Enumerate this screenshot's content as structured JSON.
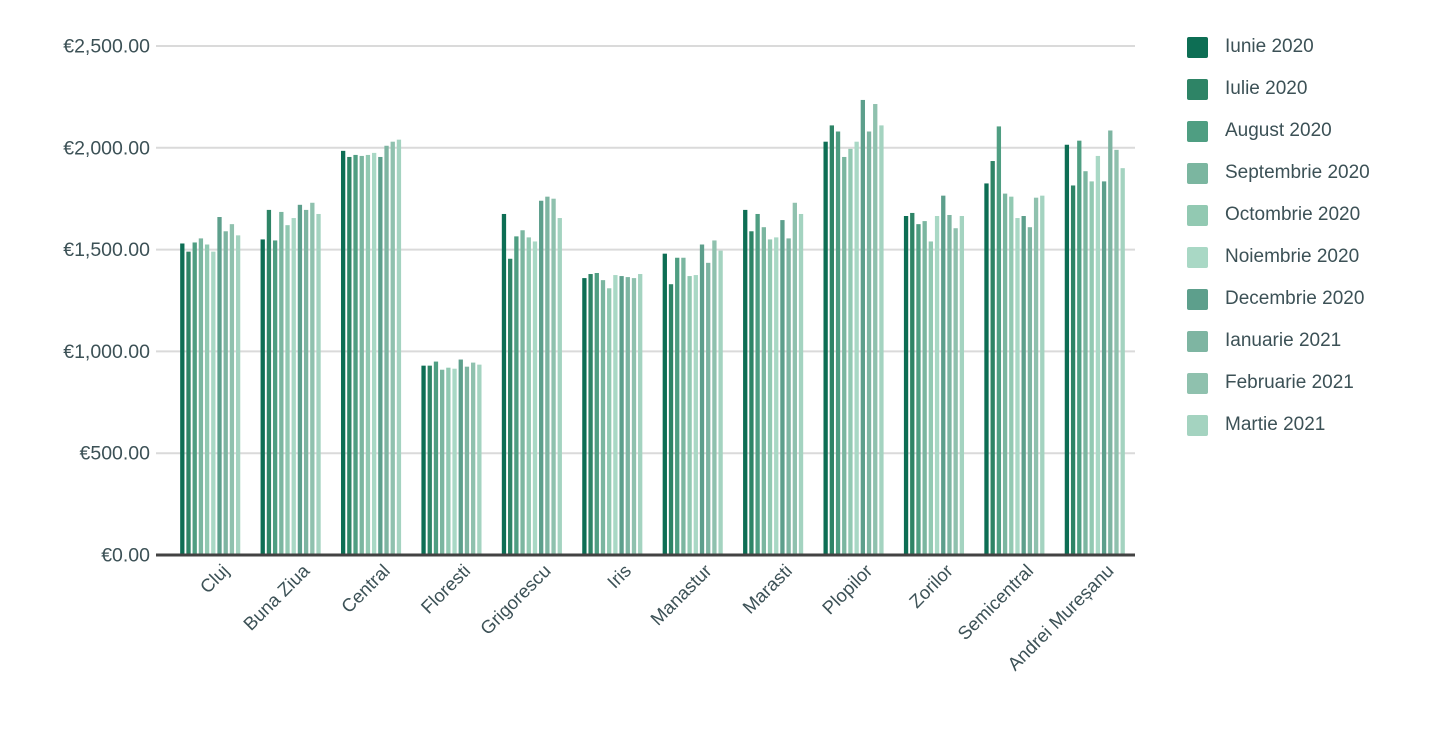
{
  "chart_data": {
    "type": "bar",
    "title": "",
    "xlabel": "",
    "ylabel": "",
    "legend_position": "right",
    "grid": true,
    "categories": [
      "Cluj",
      "Buna Ziua",
      "Central",
      "Floresti",
      "Grigorescu",
      "Iris",
      "Manastur",
      "Marasti",
      "Plopilor",
      "Zorilor",
      "Semicentral",
      "Andrei Mureșanu"
    ],
    "series": [
      {
        "name": "Iunie 2020",
        "color": "#0d6e54",
        "values": [
          1530,
          1550,
          1985,
          930,
          1675,
          1360,
          1480,
          1695,
          2030,
          1665,
          1825,
          2015
        ]
      },
      {
        "name": "Iulie 2020",
        "color": "#2e8466",
        "values": [
          1490,
          1695,
          1955,
          930,
          1455,
          1380,
          1330,
          1590,
          2110,
          1680,
          1935,
          1815
        ]
      },
      {
        "name": "August 2020",
        "color": "#4f9e82",
        "values": [
          1535,
          1545,
          1965,
          950,
          1565,
          1385,
          1460,
          1675,
          2080,
          1625,
          2105,
          2035
        ]
      },
      {
        "name": "Septembrie 2020",
        "color": "#7bb6a0",
        "values": [
          1555,
          1685,
          1960,
          910,
          1595,
          1350,
          1460,
          1610,
          1955,
          1640,
          1775,
          1885
        ]
      },
      {
        "name": "Octombrie 2020",
        "color": "#92c9b2",
        "values": [
          1525,
          1620,
          1965,
          920,
          1560,
          1310,
          1370,
          1550,
          1995,
          1540,
          1760,
          1835
        ]
      },
      {
        "name": "Noiembrie 2020",
        "color": "#a9d8c5",
        "values": [
          1490,
          1655,
          1975,
          915,
          1540,
          1375,
          1375,
          1560,
          2030,
          1665,
          1655,
          1960
        ]
      },
      {
        "name": "Decembrie 2020",
        "color": "#5d9f8c",
        "values": [
          1660,
          1720,
          1955,
          960,
          1740,
          1370,
          1525,
          1645,
          2235,
          1765,
          1665,
          1835
        ]
      },
      {
        "name": "Ianuarie 2021",
        "color": "#7eb5a2",
        "values": [
          1590,
          1695,
          2010,
          925,
          1760,
          1365,
          1435,
          1555,
          2080,
          1670,
          1610,
          2085
        ]
      },
      {
        "name": "Februarie 2021",
        "color": "#8fc1ae",
        "values": [
          1625,
          1730,
          2030,
          945,
          1750,
          1360,
          1545,
          1730,
          2215,
          1605,
          1755,
          1990
        ]
      },
      {
        "name": "Martie 2021",
        "color": "#a4d3c0",
        "values": [
          1570,
          1675,
          2040,
          935,
          1655,
          1380,
          1495,
          1675,
          2110,
          1665,
          1765,
          1900
        ]
      }
    ],
    "y_axis": {
      "min": 0,
      "max": 2500,
      "tick_interval": 500,
      "tick_labels": [
        "€0.00",
        "€500.00",
        "€1,000.00",
        "€1,500.00",
        "€2,000.00",
        "€2,500.00"
      ]
    }
  },
  "style_colors": {
    "axis_text": "#3c5156",
    "gridline": "#dadada",
    "baseline": "#424242",
    "background": "#ffffff"
  }
}
